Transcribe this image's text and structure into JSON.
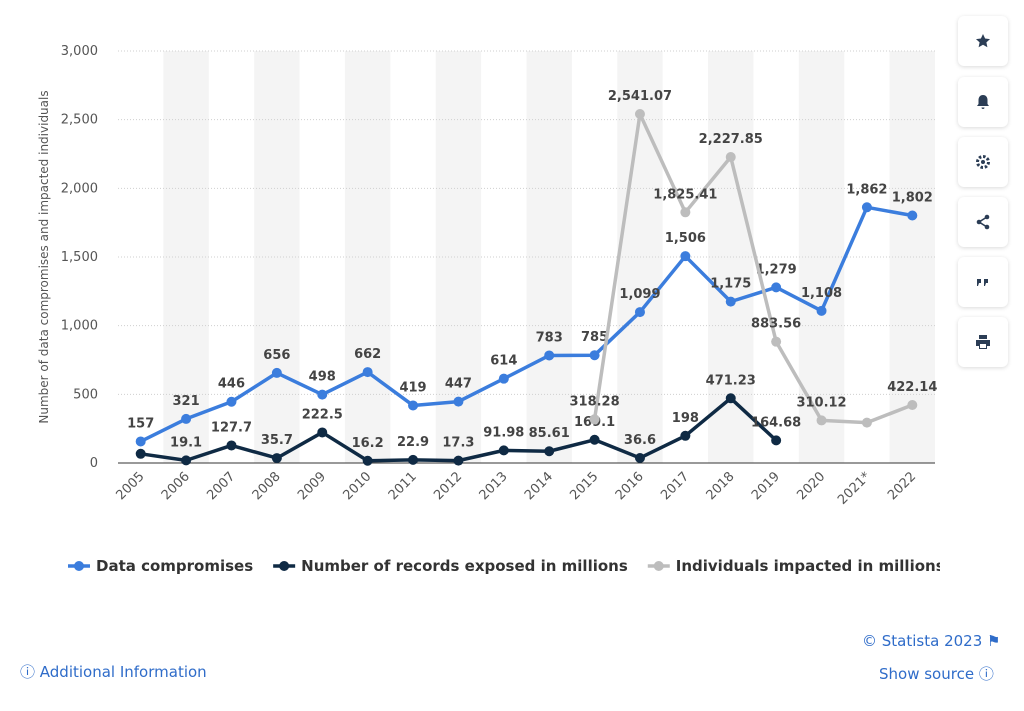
{
  "chart_data": {
    "type": "line",
    "y_label": "Number of data compromises and impacted individuals",
    "categories": [
      "2005",
      "2006",
      "2007",
      "2008",
      "2009",
      "2010",
      "2011",
      "2012",
      "2013",
      "2014",
      "2015",
      "2016",
      "2017",
      "2018",
      "2019",
      "2020",
      "2021*",
      "2022"
    ],
    "ylim": [
      0,
      3000
    ],
    "yticks": [
      0,
      500,
      {
        "value": 1000,
        "label": "1,000"
      },
      {
        "value": 1500,
        "label": "1,500"
      },
      {
        "value": 2000,
        "label": "2,000"
      },
      {
        "value": 2500,
        "label": "2,500"
      },
      {
        "value": 3000,
        "label": "3,000"
      }
    ],
    "grid": true,
    "legend": "bottom",
    "series": [
      {
        "name": "Data compromises",
        "color": "#3b7ddd",
        "values": [
          157,
          321,
          446,
          656,
          498,
          662,
          419,
          447,
          614,
          783,
          785,
          1099,
          1506,
          1175,
          1279,
          1108,
          1862,
          1802
        ],
        "value_labels": [
          "157",
          "321",
          "446",
          "656",
          "498",
          "662",
          "419",
          "447",
          "614",
          "783",
          "785",
          "1,099",
          "1,506",
          "1,175",
          "1,279",
          "1,108",
          "1,862",
          "1,802"
        ]
      },
      {
        "name": "Number of records exposed in millions",
        "color": "#0f2a44",
        "values": [
          66.9,
          19.1,
          127.7,
          35.7,
          222.5,
          16.2,
          22.9,
          17.3,
          91.98,
          85.61,
          169.1,
          36.6,
          198,
          471.23,
          164.68,
          null,
          null,
          null
        ],
        "value_labels": [
          null,
          "19.1",
          "127.7",
          "35.7",
          "222.5",
          "16.2",
          "22.9",
          "17.3",
          "91.98",
          "85.61",
          "169.1",
          "36.6",
          "198",
          "471.23",
          "164.68",
          null,
          null,
          null
        ]
      },
      {
        "name": "Individuals impacted in millions",
        "color": "#bdbdbd",
        "values": [
          null,
          null,
          null,
          null,
          null,
          null,
          null,
          null,
          null,
          null,
          318.28,
          2541.07,
          1825.41,
          2227.85,
          883.56,
          310.12,
          294,
          422.14
        ],
        "value_labels": [
          null,
          null,
          null,
          null,
          null,
          null,
          null,
          null,
          null,
          null,
          "318.28",
          "2,541.07",
          "1,825.41",
          "2,227.85",
          "883.56",
          "310.12",
          null,
          "422.14"
        ]
      }
    ]
  },
  "footer": {
    "copyright": "© Statista 2023",
    "additional_info": "Additional Information",
    "show_source": "Show source"
  }
}
